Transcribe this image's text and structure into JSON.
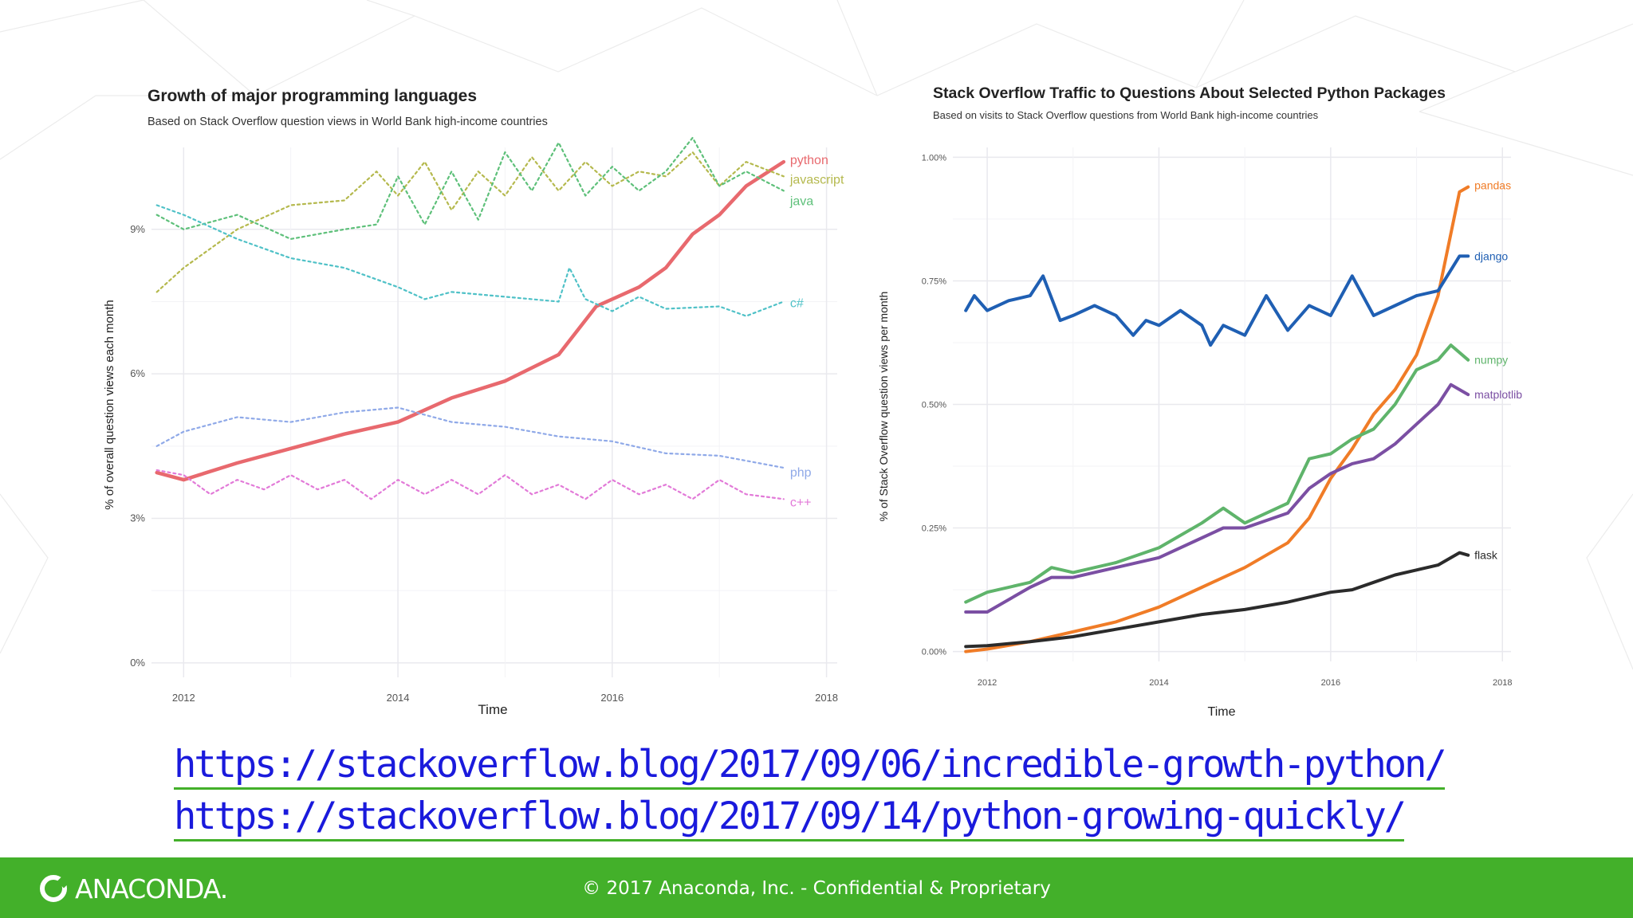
{
  "chart_data": [
    {
      "type": "line",
      "title": "Growth of major programming languages",
      "subtitle": "Based on Stack Overflow question views in World Bank high-income countries",
      "xlabel": "Time",
      "ylabel": "% of overall question views each month",
      "xlim": [
        2011.7,
        2018.1
      ],
      "ylim": [
        -0.3,
        10.7
      ],
      "xticks": [
        2012,
        2014,
        2016,
        2018
      ],
      "xtick_labels": [
        "2012",
        "2014",
        "2016",
        "2018"
      ],
      "yticks": [
        0,
        3,
        6,
        9
      ],
      "ytick_labels": [
        "0%",
        "3%",
        "6%",
        "9%"
      ],
      "grid": true,
      "legend": "direct labels at line ends",
      "series": [
        {
          "name": "python",
          "color": "#e8696e",
          "style": "solid",
          "x": [
            2011.75,
            2012.0,
            2012.5,
            2013.0,
            2013.5,
            2014.0,
            2014.5,
            2015.0,
            2015.5,
            2015.85,
            2016.25,
            2016.5,
            2016.75,
            2017.0,
            2017.25,
            2017.6
          ],
          "y": [
            3.95,
            3.8,
            4.15,
            4.45,
            4.75,
            5.0,
            5.5,
            5.85,
            6.4,
            7.4,
            7.8,
            8.2,
            8.9,
            9.3,
            9.9,
            10.4
          ]
        },
        {
          "name": "javascript",
          "color": "#b5b94e",
          "style": "dotted",
          "x": [
            2011.75,
            2012.0,
            2012.5,
            2013.0,
            2013.5,
            2013.8,
            2014.0,
            2014.25,
            2014.5,
            2014.75,
            2015.0,
            2015.25,
            2015.5,
            2015.75,
            2016.0,
            2016.25,
            2016.5,
            2016.75,
            2017.0,
            2017.25,
            2017.6
          ],
          "y": [
            7.7,
            8.2,
            9.0,
            9.5,
            9.6,
            10.2,
            9.7,
            10.4,
            9.4,
            10.2,
            9.7,
            10.5,
            9.8,
            10.4,
            9.9,
            10.2,
            10.1,
            10.6,
            9.9,
            10.4,
            10.1
          ]
        },
        {
          "name": "java",
          "color": "#5ec07a",
          "style": "dotted",
          "x": [
            2011.75,
            2012.0,
            2012.5,
            2013.0,
            2013.5,
            2013.8,
            2014.0,
            2014.25,
            2014.5,
            2014.75,
            2015.0,
            2015.25,
            2015.5,
            2015.75,
            2016.0,
            2016.25,
            2016.5,
            2016.75,
            2017.0,
            2017.25,
            2017.6
          ],
          "y": [
            9.3,
            9.0,
            9.3,
            8.8,
            9.0,
            9.1,
            10.1,
            9.1,
            10.2,
            9.2,
            10.6,
            9.8,
            10.8,
            9.7,
            10.3,
            9.8,
            10.2,
            10.9,
            9.9,
            10.2,
            9.8
          ]
        },
        {
          "name": "c#",
          "color": "#4fc1c7",
          "style": "dotted",
          "x": [
            2011.75,
            2012.0,
            2012.5,
            2013.0,
            2013.5,
            2014.0,
            2014.25,
            2014.5,
            2015.0,
            2015.5,
            2015.6,
            2015.75,
            2016.0,
            2016.25,
            2016.5,
            2017.0,
            2017.25,
            2017.6
          ],
          "y": [
            9.5,
            9.3,
            8.8,
            8.4,
            8.2,
            7.8,
            7.55,
            7.7,
            7.6,
            7.5,
            8.2,
            7.55,
            7.3,
            7.6,
            7.35,
            7.4,
            7.2,
            7.5
          ]
        },
        {
          "name": "php",
          "color": "#8fa9e8",
          "style": "dotted",
          "x": [
            2011.75,
            2012.0,
            2012.5,
            2013.0,
            2013.5,
            2014.0,
            2014.5,
            2015.0,
            2015.5,
            2016.0,
            2016.5,
            2017.0,
            2017.6
          ],
          "y": [
            4.5,
            4.8,
            5.1,
            5.0,
            5.2,
            5.3,
            5.0,
            4.9,
            4.7,
            4.6,
            4.35,
            4.3,
            4.05
          ]
        },
        {
          "name": "c++",
          "color": "#e27ad8",
          "style": "dotted",
          "x": [
            2011.75,
            2012.0,
            2012.25,
            2012.5,
            2012.75,
            2013.0,
            2013.25,
            2013.5,
            2013.75,
            2014.0,
            2014.25,
            2014.5,
            2014.75,
            2015.0,
            2015.25,
            2015.5,
            2015.75,
            2016.0,
            2016.25,
            2016.5,
            2016.75,
            2017.0,
            2017.25,
            2017.6
          ],
          "y": [
            4.0,
            3.9,
            3.5,
            3.8,
            3.6,
            3.9,
            3.6,
            3.8,
            3.4,
            3.8,
            3.5,
            3.8,
            3.5,
            3.9,
            3.5,
            3.7,
            3.4,
            3.8,
            3.5,
            3.7,
            3.4,
            3.8,
            3.5,
            3.4
          ]
        }
      ]
    },
    {
      "type": "line",
      "title": "Stack Overflow Traffic to Questions About Selected Python Packages",
      "subtitle": "Based on visits to Stack Overflow questions from World Bank high-income countries",
      "xlabel": "Time",
      "ylabel": "% of Stack Overflow question views per month",
      "xlim": [
        2011.6,
        2018.1
      ],
      "ylim": [
        -0.02,
        1.02
      ],
      "xticks": [
        2012,
        2014,
        2016,
        2018
      ],
      "xtick_labels": [
        "2012",
        "2014",
        "2016",
        "2018"
      ],
      "yticks": [
        0,
        0.25,
        0.5,
        0.75,
        1.0
      ],
      "ytick_labels": [
        "0.00%",
        "0.25%",
        "0.50%",
        "0.75%",
        "1.00%"
      ],
      "grid": true,
      "legend": "direct labels at line ends",
      "series": [
        {
          "name": "pandas",
          "color": "#f07c27",
          "x": [
            2011.75,
            2012.0,
            2012.5,
            2013.0,
            2013.5,
            2014.0,
            2014.5,
            2015.0,
            2015.5,
            2015.75,
            2016.0,
            2016.25,
            2016.5,
            2016.75,
            2017.0,
            2017.25,
            2017.5,
            2017.6
          ],
          "y": [
            0.0,
            0.005,
            0.02,
            0.04,
            0.06,
            0.09,
            0.13,
            0.17,
            0.22,
            0.27,
            0.35,
            0.41,
            0.48,
            0.53,
            0.6,
            0.72,
            0.93,
            0.94
          ]
        },
        {
          "name": "django",
          "color": "#1f5fb3",
          "x": [
            2011.75,
            2011.85,
            2012.0,
            2012.25,
            2012.5,
            2012.65,
            2012.85,
            2013.0,
            2013.25,
            2013.5,
            2013.7,
            2013.85,
            2014.0,
            2014.25,
            2014.5,
            2014.6,
            2014.75,
            2015.0,
            2015.25,
            2015.5,
            2015.75,
            2016.0,
            2016.25,
            2016.5,
            2016.75,
            2017.0,
            2017.25,
            2017.5,
            2017.6
          ],
          "y": [
            0.69,
            0.72,
            0.69,
            0.71,
            0.72,
            0.76,
            0.67,
            0.68,
            0.7,
            0.68,
            0.64,
            0.67,
            0.66,
            0.69,
            0.66,
            0.62,
            0.66,
            0.64,
            0.72,
            0.65,
            0.7,
            0.68,
            0.76,
            0.68,
            0.7,
            0.72,
            0.73,
            0.8,
            0.8
          ]
        },
        {
          "name": "numpy",
          "color": "#5fb46b",
          "x": [
            2011.75,
            2012.0,
            2012.5,
            2012.75,
            2013.0,
            2013.5,
            2014.0,
            2014.5,
            2014.75,
            2015.0,
            2015.5,
            2015.75,
            2016.0,
            2016.25,
            2016.5,
            2016.75,
            2017.0,
            2017.25,
            2017.4,
            2017.6
          ],
          "y": [
            0.1,
            0.12,
            0.14,
            0.17,
            0.16,
            0.18,
            0.21,
            0.26,
            0.29,
            0.26,
            0.3,
            0.39,
            0.4,
            0.43,
            0.45,
            0.5,
            0.57,
            0.59,
            0.62,
            0.59
          ]
        },
        {
          "name": "matplotlib",
          "color": "#7b4fa3",
          "x": [
            2011.75,
            2012.0,
            2012.5,
            2012.75,
            2013.0,
            2013.5,
            2014.0,
            2014.5,
            2014.75,
            2015.0,
            2015.5,
            2015.75,
            2016.0,
            2016.25,
            2016.5,
            2016.75,
            2017.0,
            2017.25,
            2017.4,
            2017.6
          ],
          "y": [
            0.08,
            0.08,
            0.13,
            0.15,
            0.15,
            0.17,
            0.19,
            0.23,
            0.25,
            0.25,
            0.28,
            0.33,
            0.36,
            0.38,
            0.39,
            0.42,
            0.46,
            0.5,
            0.54,
            0.52
          ]
        },
        {
          "name": "flask",
          "color": "#2b2b2b",
          "x": [
            2011.75,
            2012.0,
            2012.5,
            2013.0,
            2013.5,
            2014.0,
            2014.5,
            2015.0,
            2015.5,
            2016.0,
            2016.25,
            2016.5,
            2016.75,
            2017.0,
            2017.25,
            2017.5,
            2017.6
          ],
          "y": [
            0.01,
            0.012,
            0.02,
            0.03,
            0.045,
            0.06,
            0.075,
            0.085,
            0.1,
            0.12,
            0.125,
            0.14,
            0.155,
            0.165,
            0.175,
            0.2,
            0.195
          ]
        }
      ]
    }
  ],
  "links": [
    "https://stackoverflow.blog/2017/09/06/incredible-growth-python/",
    "https://stackoverflow.blog/2017/09/14/python-growing-quickly/"
  ],
  "footer": {
    "logo_text": "ANACONDA.",
    "copyright": "© 2017 Anaconda, Inc. - Confidential & Proprietary",
    "background": "#43b02a"
  }
}
